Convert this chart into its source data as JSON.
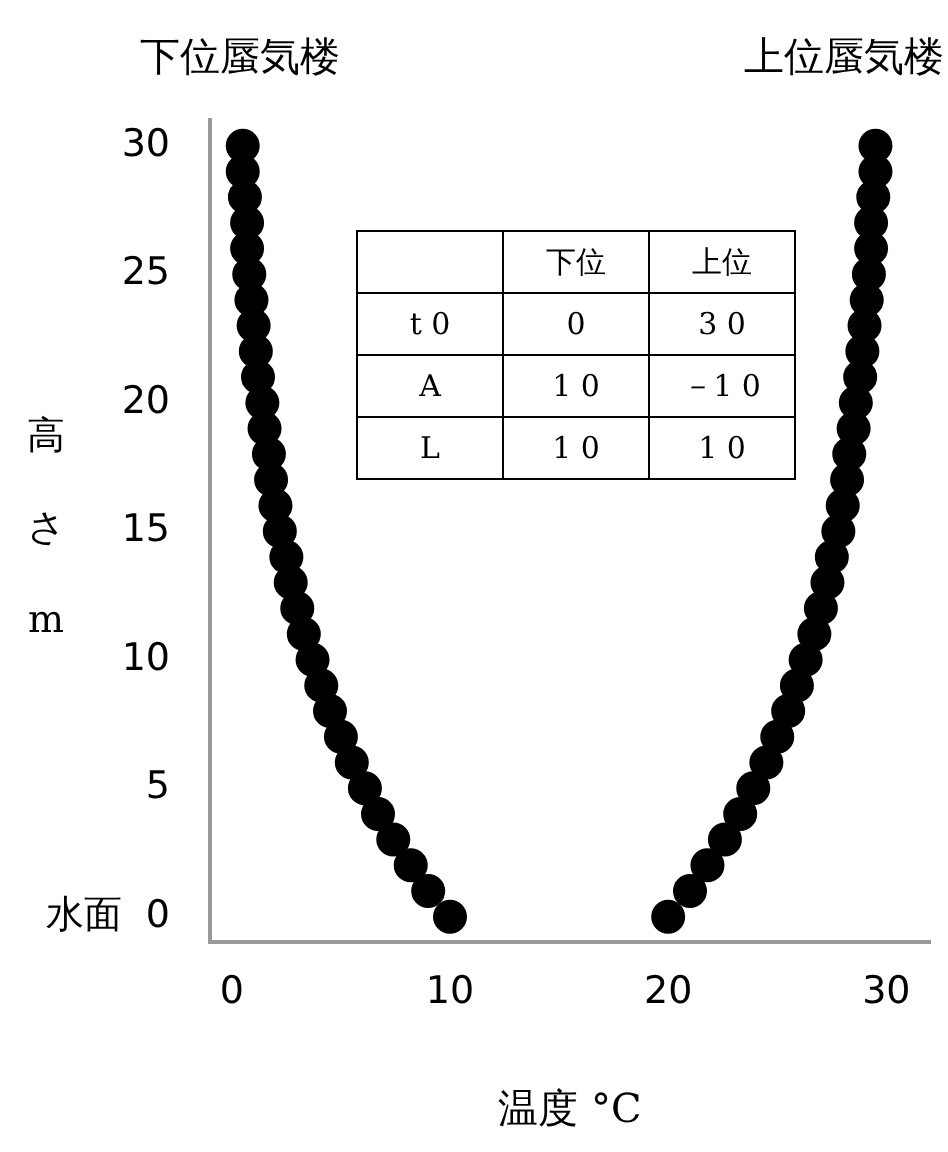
{
  "chart_data": {
    "type": "scatter",
    "xlabel": "温度 °C",
    "ylabel": "高さm",
    "xlim": [
      -1,
      32
    ],
    "ylim": [
      -1,
      31
    ],
    "xticks": [
      0,
      10,
      20,
      30
    ],
    "yticks": [
      {
        "value": 0,
        "label": "水面  0"
      },
      5,
      10,
      15,
      20,
      25,
      30
    ],
    "grid": false,
    "legend": false,
    "marker": "circle",
    "series": [
      {
        "name": "下位蜃気楼",
        "color": "#000000",
        "x": [
          10.0,
          9.0,
          8.2,
          7.4,
          6.7,
          6.1,
          5.5,
          5.0,
          4.5,
          4.1,
          3.7,
          3.3,
          3.0,
          2.7,
          2.5,
          2.2,
          2.0,
          1.8,
          1.7,
          1.5,
          1.4,
          1.2,
          1.1,
          1.0,
          0.9,
          0.8,
          0.7,
          0.7,
          0.6,
          0.5,
          0.5
        ],
        "values": [
          0,
          1,
          2,
          3,
          4,
          5,
          6,
          7,
          8,
          9,
          10,
          11,
          12,
          13,
          14,
          15,
          16,
          17,
          18,
          19,
          20,
          21,
          22,
          23,
          24,
          25,
          26,
          27,
          28,
          29,
          30
        ]
      },
      {
        "name": "上位蜃気楼",
        "color": "#000000",
        "x": [
          20.0,
          21.0,
          21.8,
          22.6,
          23.3,
          23.9,
          24.5,
          25.0,
          25.5,
          25.9,
          26.3,
          26.7,
          27.0,
          27.3,
          27.5,
          27.8,
          28.0,
          28.2,
          28.3,
          28.5,
          28.6,
          28.8,
          28.9,
          29.0,
          29.1,
          29.2,
          29.3,
          29.3,
          29.4,
          29.5,
          29.5
        ],
        "values": [
          0,
          1,
          2,
          3,
          4,
          5,
          6,
          7,
          8,
          9,
          10,
          11,
          12,
          13,
          14,
          15,
          16,
          17,
          18,
          19,
          20,
          21,
          22,
          23,
          24,
          25,
          26,
          27,
          28,
          29,
          30
        ]
      }
    ],
    "annotations": [
      "下位",
      "上位",
      "t 0",
      "0",
      "3 0",
      "A",
      "1 0",
      "－1 0",
      "L",
      "1 0",
      "1 0"
    ]
  }
}
